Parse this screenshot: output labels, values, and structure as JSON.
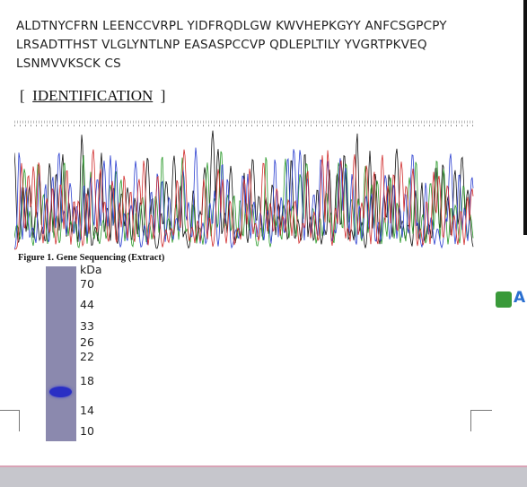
{
  "sequence": {
    "lines": [
      "ALDTNYCFRN LEENCCVRPL YIDFRQDLGW KWVHEPKGYY ANFCSGPCPY",
      "LRSADTTHST VLGLYNTLNP EASASPCCVP QDLEPLTILY YVGRTPKVEQ",
      "LSNMVVKSCK CS"
    ]
  },
  "section": {
    "open": "[",
    "title": "IDENTIFICATION",
    "close": "]"
  },
  "figure": {
    "caption": "Figure 1. Gene Sequencing (Extract)"
  },
  "gel": {
    "unit": "kDa",
    "markers": [
      "70",
      "44",
      "33",
      "26",
      "22",
      "18",
      "14",
      "10"
    ]
  },
  "side_label": "A"
}
